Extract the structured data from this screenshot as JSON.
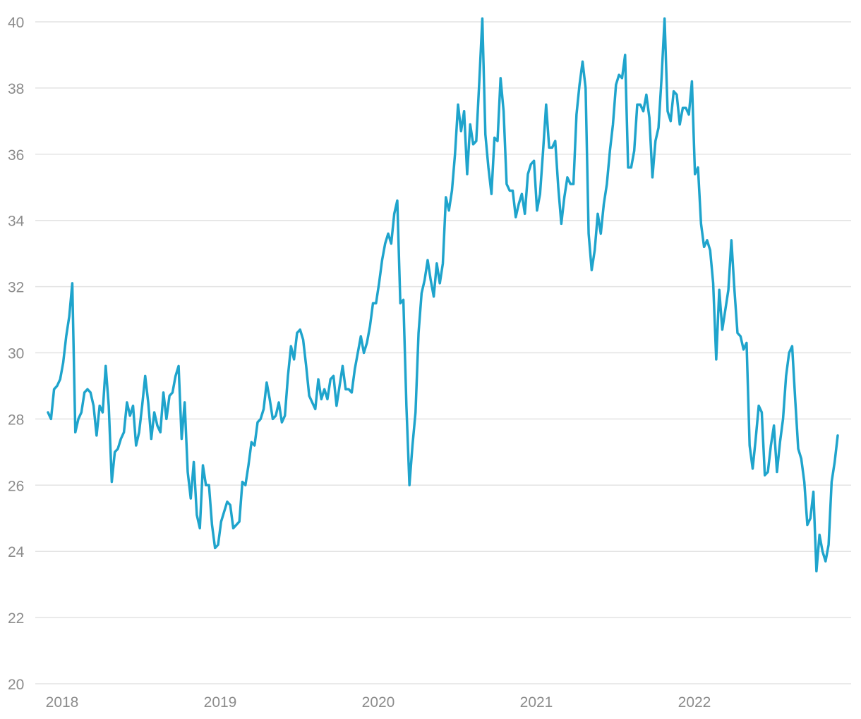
{
  "chart_data": {
    "type": "line",
    "title": "",
    "xlabel": "",
    "ylabel": "",
    "ylim": [
      20,
      40
    ],
    "grid": true,
    "legend": "none",
    "y_ticks": [
      "20",
      "22",
      "24",
      "26",
      "28",
      "30",
      "32",
      "34",
      "36",
      "38",
      "40"
    ],
    "x_ticks": [
      "2018",
      "2019",
      "2020",
      "2021",
      "2022"
    ],
    "series": [
      {
        "color": "#1fa4cc",
        "values": [
          28.2,
          28.0,
          28.9,
          29.0,
          29.2,
          29.7,
          30.5,
          31.1,
          32.1,
          27.6,
          28.0,
          28.2,
          28.8,
          28.9,
          28.8,
          28.4,
          27.5,
          28.4,
          28.2,
          29.6,
          28.4,
          26.1,
          27.0,
          27.1,
          27.4,
          27.6,
          28.5,
          28.1,
          28.4,
          27.2,
          27.6,
          28.4,
          29.3,
          28.5,
          27.4,
          28.2,
          27.8,
          27.6,
          28.8,
          28.0,
          28.7,
          28.8,
          29.3,
          29.6,
          27.4,
          28.5,
          26.4,
          25.6,
          26.7,
          25.1,
          24.7,
          26.6,
          26.0,
          26.0,
          24.8,
          24.1,
          24.2,
          24.9,
          25.2,
          25.5,
          25.4,
          24.7,
          24.8,
          24.9,
          26.1,
          26.0,
          26.6,
          27.3,
          27.2,
          27.9,
          28.0,
          28.3,
          29.1,
          28.6,
          28.0,
          28.1,
          28.5,
          27.9,
          28.1,
          29.3,
          30.2,
          29.8,
          30.6,
          30.7,
          30.4,
          29.6,
          28.7,
          28.5,
          28.3,
          29.2,
          28.6,
          28.9,
          28.6,
          29.2,
          29.3,
          28.4,
          29.0,
          29.6,
          28.9,
          28.9,
          28.8,
          29.5,
          30.0,
          30.5,
          30.0,
          30.3,
          30.8,
          31.5,
          31.5,
          32.1,
          32.8,
          33.3,
          33.6,
          33.3,
          34.2,
          34.6,
          31.5,
          31.6,
          28.4,
          26.0,
          27.2,
          28.2,
          30.6,
          31.8,
          32.2,
          32.8,
          32.2,
          31.7,
          32.7,
          32.1,
          32.7,
          34.7,
          34.3,
          34.9,
          36.0,
          37.5,
          36.7,
          37.3,
          35.4,
          36.9,
          36.3,
          36.4,
          38.2,
          40.1,
          36.6,
          35.6,
          34.8,
          36.5,
          36.4,
          38.3,
          37.3,
          35.1,
          34.9,
          34.9,
          34.1,
          34.5,
          34.8,
          34.2,
          35.4,
          35.7,
          35.8,
          34.3,
          34.8,
          36.1,
          37.5,
          36.2,
          36.2,
          36.4,
          35.0,
          33.9,
          34.7,
          35.3,
          35.1,
          35.1,
          37.2,
          38.1,
          38.8,
          38.0,
          33.6,
          32.5,
          33.1,
          34.2,
          33.6,
          34.5,
          35.1,
          36.1,
          36.9,
          38.1,
          38.4,
          38.3,
          39.0,
          35.6,
          35.6,
          36.1,
          37.5,
          37.5,
          37.3,
          37.8,
          37.1,
          35.3,
          36.4,
          36.8,
          38.3,
          40.1,
          37.3,
          37.0,
          37.9,
          37.8,
          36.9,
          37.4,
          37.4,
          37.2,
          38.2,
          35.4,
          35.6,
          33.9,
          33.2,
          33.4,
          33.1,
          32.1,
          29.8,
          31.9,
          30.7,
          31.3,
          31.9,
          33.4,
          31.9,
          30.6,
          30.5,
          30.1,
          30.3,
          27.2,
          26.5,
          27.4,
          28.4,
          28.2,
          26.3,
          26.4,
          27.2,
          27.8,
          26.4,
          27.3,
          28.0,
          29.3,
          30.0,
          30.2,
          28.6,
          27.1,
          26.8,
          26.1,
          24.8,
          25.0,
          25.8,
          23.4,
          24.5,
          24.0,
          23.7,
          24.2,
          26.1,
          26.7,
          27.5
        ]
      }
    ]
  }
}
